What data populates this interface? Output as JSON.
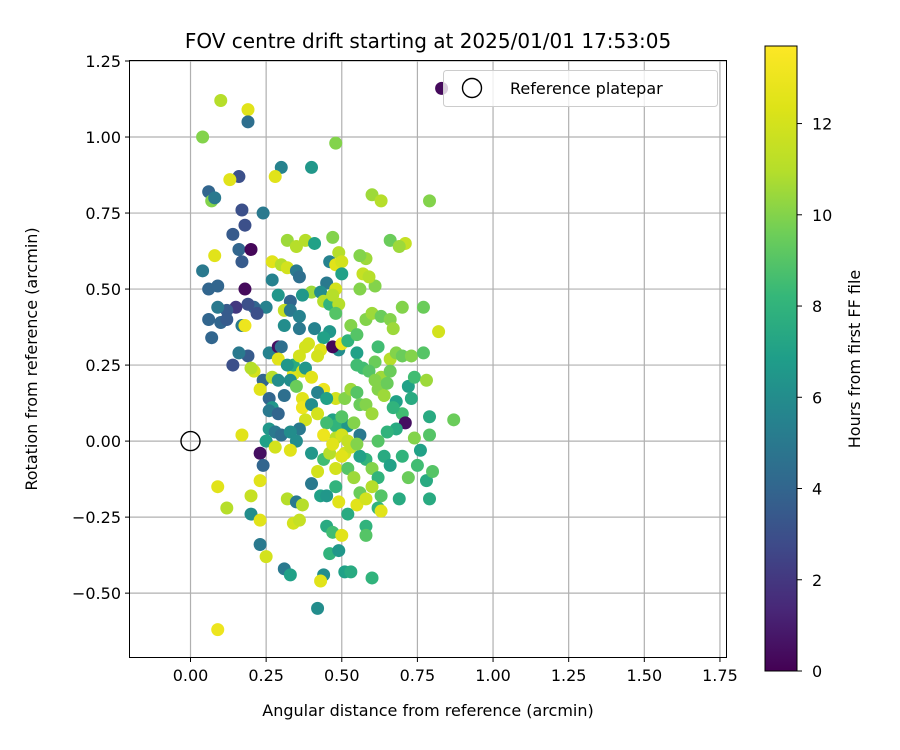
{
  "chart_data": {
    "type": "scatter",
    "title": "FOV centre drift starting at 2025/01/01 17:53:05",
    "xlabel": "Angular distance from reference (arcmin)",
    "ylabel": "Rotation from reference (arcmin)",
    "xlim": [
      -0.2,
      1.77
    ],
    "ylim": [
      -0.71,
      1.25
    ],
    "grid": true,
    "legend_placement": "top-right",
    "xticks": [
      "0.00",
      "0.25",
      "0.50",
      "0.75",
      "1.00",
      "1.25",
      "1.50",
      "1.75"
    ],
    "xtick_values": [
      0,
      0.25,
      0.5,
      0.75,
      1.0,
      1.25,
      1.5,
      1.75
    ],
    "yticks": [
      "1.25",
      "1.00",
      "0.75",
      "0.50",
      "0.25",
      "0.00",
      "−0.25",
      "−0.50"
    ],
    "ytick_values": [
      1.25,
      1.0,
      0.75,
      0.5,
      0.25,
      0.0,
      -0.25,
      -0.5
    ],
    "reference": {
      "label": "Reference platepar",
      "x": 0.0,
      "y": 0.0
    },
    "colorbar": {
      "label": "Hours from first FF file",
      "colormap": "viridis",
      "range": [
        0,
        13.7
      ],
      "ticks": [
        "0",
        "2",
        "4",
        "6",
        "8",
        "10",
        "12"
      ],
      "tick_values": [
        0,
        2,
        4,
        6,
        8,
        10,
        12
      ]
    },
    "points": [
      [
        0.83,
        1.16,
        0.3
      ],
      [
        0.1,
        1.12,
        11.0
      ],
      [
        0.04,
        1.0,
        10.0
      ],
      [
        0.19,
        1.09,
        12.5
      ],
      [
        0.19,
        1.05,
        4.5
      ],
      [
        0.48,
        0.98,
        10.0
      ],
      [
        0.4,
        0.9,
        6.5
      ],
      [
        0.3,
        0.9,
        5.5
      ],
      [
        0.16,
        0.87,
        3.0
      ],
      [
        0.13,
        0.86,
        12.5
      ],
      [
        0.28,
        0.87,
        12.5
      ],
      [
        0.06,
        0.82,
        4.0
      ],
      [
        0.07,
        0.79,
        10.0
      ],
      [
        0.08,
        0.8,
        5.0
      ],
      [
        0.6,
        0.81,
        10.5
      ],
      [
        0.63,
        0.79,
        11.0
      ],
      [
        0.79,
        0.79,
        10.0
      ],
      [
        0.17,
        0.76,
        3.0
      ],
      [
        0.24,
        0.75,
        5.0
      ],
      [
        0.14,
        0.68,
        3.5
      ],
      [
        0.18,
        0.71,
        3.0
      ],
      [
        0.32,
        0.66,
        10.5
      ],
      [
        0.38,
        0.66,
        11.0
      ],
      [
        0.47,
        0.67,
        10.0
      ],
      [
        0.35,
        0.64,
        11.0
      ],
      [
        0.16,
        0.63,
        4.0
      ],
      [
        0.2,
        0.63,
        0.2
      ],
      [
        0.08,
        0.61,
        12.5
      ],
      [
        0.17,
        0.59,
        3.5
      ],
      [
        0.41,
        0.65,
        7.0
      ],
      [
        0.66,
        0.66,
        9.5
      ],
      [
        0.71,
        0.65,
        11.5
      ],
      [
        0.69,
        0.64,
        10.5
      ],
      [
        0.49,
        0.62,
        11.0
      ],
      [
        0.58,
        0.6,
        10.5
      ],
      [
        0.56,
        0.61,
        10.0
      ],
      [
        0.27,
        0.59,
        12.5
      ],
      [
        0.3,
        0.58,
        11.0
      ],
      [
        0.32,
        0.57,
        12.0
      ],
      [
        0.35,
        0.56,
        5.0
      ],
      [
        0.36,
        0.54,
        4.5
      ],
      [
        0.27,
        0.53,
        5.5
      ],
      [
        0.04,
        0.56,
        5.0
      ],
      [
        0.06,
        0.5,
        4.0
      ],
      [
        0.09,
        0.51,
        4.0
      ],
      [
        0.18,
        0.5,
        0.3
      ],
      [
        0.46,
        0.59,
        5.5
      ],
      [
        0.48,
        0.58,
        12.5
      ],
      [
        0.5,
        0.59,
        12.0
      ],
      [
        0.5,
        0.55,
        7.0
      ],
      [
        0.45,
        0.52,
        5.0
      ],
      [
        0.48,
        0.5,
        12.0
      ],
      [
        0.56,
        0.5,
        10.0
      ],
      [
        0.61,
        0.51,
        10.0
      ],
      [
        0.4,
        0.49,
        10.5
      ],
      [
        0.43,
        0.49,
        6.0
      ],
      [
        0.44,
        0.46,
        11.0
      ],
      [
        0.46,
        0.45,
        8.0
      ],
      [
        0.37,
        0.48,
        6.5
      ],
      [
        0.29,
        0.48,
        6.5
      ],
      [
        0.33,
        0.46,
        4.0
      ],
      [
        0.25,
        0.44,
        5.5
      ],
      [
        0.21,
        0.44,
        4.0
      ],
      [
        0.22,
        0.42,
        3.0
      ],
      [
        0.19,
        0.45,
        3.0
      ],
      [
        0.15,
        0.44,
        2.0
      ],
      [
        0.12,
        0.43,
        3.5
      ],
      [
        0.09,
        0.44,
        5.0
      ],
      [
        0.06,
        0.4,
        4.0
      ],
      [
        0.1,
        0.39,
        4.0
      ],
      [
        0.12,
        0.4,
        3.5
      ],
      [
        0.17,
        0.38,
        5.0
      ],
      [
        0.31,
        0.43,
        11.5
      ],
      [
        0.33,
        0.43,
        5.0
      ],
      [
        0.36,
        0.41,
        5.5
      ],
      [
        0.47,
        0.48,
        11.0
      ],
      [
        0.49,
        0.45,
        11.0
      ],
      [
        0.48,
        0.42,
        9.0
      ],
      [
        0.53,
        0.38,
        10.0
      ],
      [
        0.58,
        0.4,
        10.0
      ],
      [
        0.6,
        0.42,
        10.5
      ],
      [
        0.63,
        0.41,
        9.5
      ],
      [
        0.66,
        0.4,
        10.0
      ],
      [
        0.7,
        0.44,
        10.0
      ],
      [
        0.77,
        0.44,
        9.5
      ],
      [
        0.67,
        0.37,
        10.5
      ],
      [
        0.82,
        0.36,
        12.0
      ],
      [
        0.31,
        0.38,
        6.0
      ],
      [
        0.36,
        0.37,
        5.0
      ],
      [
        0.41,
        0.37,
        5.5
      ],
      [
        0.46,
        0.36,
        6.5
      ],
      [
        0.44,
        0.34,
        7.0
      ],
      [
        0.39,
        0.32,
        12.0
      ],
      [
        0.43,
        0.3,
        12.5
      ],
      [
        0.38,
        0.31,
        12.0
      ],
      [
        0.49,
        0.3,
        6.0
      ],
      [
        0.47,
        0.31,
        0.2
      ],
      [
        0.5,
        0.32,
        13.0
      ],
      [
        0.55,
        0.29,
        7.0
      ],
      [
        0.55,
        0.25,
        8.5
      ],
      [
        0.61,
        0.26,
        9.5
      ],
      [
        0.62,
        0.31,
        8.5
      ],
      [
        0.66,
        0.27,
        11.0
      ],
      [
        0.68,
        0.29,
        10.0
      ],
      [
        0.7,
        0.28,
        9.5
      ],
      [
        0.73,
        0.28,
        10.0
      ],
      [
        0.77,
        0.29,
        9.0
      ],
      [
        0.07,
        0.34,
        4.0
      ],
      [
        0.18,
        0.38,
        13.0
      ],
      [
        0.19,
        0.28,
        3.5
      ],
      [
        0.16,
        0.29,
        5.0
      ],
      [
        0.21,
        0.23,
        12.0
      ],
      [
        0.2,
        0.24,
        11.0
      ],
      [
        0.14,
        0.25,
        3.0
      ],
      [
        0.26,
        0.29,
        5.5
      ],
      [
        0.29,
        0.31,
        0.5
      ],
      [
        0.3,
        0.31,
        4.5
      ],
      [
        0.29,
        0.27,
        12.5
      ],
      [
        0.34,
        0.22,
        12.5
      ],
      [
        0.33,
        0.2,
        6.0
      ],
      [
        0.35,
        0.18,
        9.5
      ],
      [
        0.34,
        0.25,
        7.5
      ],
      [
        0.37,
        0.23,
        12.0
      ],
      [
        0.42,
        0.28,
        12.0
      ],
      [
        0.24,
        0.2,
        4.0
      ],
      [
        0.23,
        0.17,
        12.5
      ],
      [
        0.27,
        0.21,
        11.0
      ],
      [
        0.26,
        0.14,
        4.0
      ],
      [
        0.27,
        0.11,
        6.5
      ],
      [
        0.26,
        0.1,
        5.0
      ],
      [
        0.29,
        0.09,
        4.0
      ],
      [
        0.37,
        0.14,
        12.5
      ],
      [
        0.37,
        0.11,
        13.0
      ],
      [
        0.38,
        0.07,
        12.0
      ],
      [
        0.36,
        0.04,
        5.0
      ],
      [
        0.44,
        0.17,
        13.0
      ],
      [
        0.48,
        0.14,
        12.0
      ],
      [
        0.51,
        0.14,
        10.0
      ],
      [
        0.53,
        0.17,
        10.5
      ],
      [
        0.55,
        0.16,
        9.0
      ],
      [
        0.56,
        0.12,
        9.5
      ],
      [
        0.47,
        0.07,
        7.0
      ],
      [
        0.48,
        0.05,
        8.0
      ],
      [
        0.52,
        0.05,
        6.5
      ],
      [
        0.54,
        0.06,
        10.0
      ],
      [
        0.56,
        0.02,
        5.0
      ],
      [
        0.58,
        0.12,
        10.0
      ],
      [
        0.6,
        0.09,
        10.5
      ],
      [
        0.62,
        0.17,
        10.0
      ],
      [
        0.64,
        0.15,
        10.5
      ],
      [
        0.63,
        0.21,
        10.5
      ],
      [
        0.66,
        0.23,
        9.5
      ],
      [
        0.68,
        0.13,
        7.0
      ],
      [
        0.7,
        0.09,
        8.5
      ],
      [
        0.72,
        0.18,
        7.0
      ],
      [
        0.73,
        0.14,
        7.5
      ],
      [
        0.74,
        0.21,
        8.5
      ],
      [
        0.78,
        0.2,
        10.5
      ],
      [
        0.71,
        0.06,
        0.5
      ],
      [
        0.68,
        0.04,
        7.5
      ],
      [
        0.65,
        0.03,
        8.0
      ],
      [
        0.62,
        0.0,
        9.0
      ],
      [
        0.74,
        0.01,
        10.0
      ],
      [
        0.76,
        -0.03,
        7.0
      ],
      [
        0.79,
        0.08,
        7.5
      ],
      [
        0.79,
        0.02,
        9.0
      ],
      [
        0.87,
        0.07,
        9.5
      ],
      [
        0.26,
        0.04,
        6.5
      ],
      [
        0.28,
        0.03,
        5.0
      ],
      [
        0.25,
        0.0,
        7.0
      ],
      [
        0.3,
        0.02,
        4.5
      ],
      [
        0.33,
        0.03,
        6.0
      ],
      [
        0.35,
        0.0,
        6.0
      ],
      [
        0.17,
        0.02,
        12.5
      ],
      [
        0.23,
        -0.04,
        0.5
      ],
      [
        0.24,
        -0.08,
        4.0
      ],
      [
        0.28,
        -0.02,
        12.0
      ],
      [
        0.33,
        -0.03,
        12.5
      ],
      [
        0.4,
        -0.04,
        6.5
      ],
      [
        0.42,
        -0.1,
        12.0
      ],
      [
        0.44,
        -0.06,
        8.5
      ],
      [
        0.46,
        -0.04,
        11.0
      ],
      [
        0.48,
        -0.09,
        12.0
      ],
      [
        0.51,
        -0.04,
        12.0
      ],
      [
        0.53,
        -0.02,
        11.5
      ],
      [
        0.48,
        0.01,
        11.0
      ],
      [
        0.5,
        -0.05,
        12.5
      ],
      [
        0.58,
        -0.06,
        8.0
      ],
      [
        0.6,
        -0.09,
        10.0
      ],
      [
        0.62,
        -0.12,
        8.0
      ],
      [
        0.64,
        -0.05,
        7.5
      ],
      [
        0.66,
        -0.08,
        7.0
      ],
      [
        0.7,
        -0.05,
        8.0
      ],
      [
        0.72,
        -0.12,
        9.5
      ],
      [
        0.75,
        -0.08,
        8.5
      ],
      [
        0.78,
        -0.13,
        7.5
      ],
      [
        0.8,
        -0.1,
        9.0
      ],
      [
        0.79,
        -0.19,
        7.5
      ],
      [
        0.69,
        -0.19,
        7.5
      ],
      [
        0.63,
        -0.18,
        9.0
      ],
      [
        0.09,
        -0.15,
        12.5
      ],
      [
        0.12,
        -0.22,
        11.0
      ],
      [
        0.2,
        -0.18,
        11.5
      ],
      [
        0.23,
        -0.13,
        12.5
      ],
      [
        0.2,
        -0.24,
        6.0
      ],
      [
        0.23,
        -0.26,
        12.5
      ],
      [
        0.32,
        -0.19,
        11.0
      ],
      [
        0.35,
        -0.2,
        5.0
      ],
      [
        0.37,
        -0.21,
        11.0
      ],
      [
        0.34,
        -0.27,
        12.0
      ],
      [
        0.36,
        -0.26,
        11.5
      ],
      [
        0.4,
        -0.14,
        5.0
      ],
      [
        0.43,
        -0.18,
        7.0
      ],
      [
        0.45,
        -0.18,
        6.5
      ],
      [
        0.48,
        -0.15,
        8.0
      ],
      [
        0.49,
        -0.2,
        12.5
      ],
      [
        0.52,
        -0.24,
        7.5
      ],
      [
        0.55,
        -0.21,
        12.5
      ],
      [
        0.56,
        -0.17,
        9.5
      ],
      [
        0.58,
        -0.19,
        12.0
      ],
      [
        0.6,
        -0.15,
        11.0
      ],
      [
        0.62,
        -0.22,
        8.0
      ],
      [
        0.63,
        -0.23,
        12.5
      ],
      [
        0.45,
        -0.28,
        7.5
      ],
      [
        0.47,
        -0.3,
        8.5
      ],
      [
        0.5,
        -0.31,
        12.5
      ],
      [
        0.58,
        -0.28,
        8.0
      ],
      [
        0.58,
        -0.31,
        9.0
      ],
      [
        0.46,
        -0.37,
        8.0
      ],
      [
        0.49,
        -0.36,
        6.5
      ],
      [
        0.51,
        -0.43,
        7.0
      ],
      [
        0.53,
        -0.43,
        7.5
      ],
      [
        0.6,
        -0.45,
        8.0
      ],
      [
        0.44,
        -0.44,
        6.0
      ],
      [
        0.43,
        -0.46,
        12.5
      ],
      [
        0.31,
        -0.42,
        5.0
      ],
      [
        0.33,
        -0.44,
        7.0
      ],
      [
        0.25,
        -0.38,
        12.0
      ],
      [
        0.23,
        -0.34,
        5.0
      ],
      [
        0.42,
        -0.55,
        6.0
      ],
      [
        0.09,
        -0.62,
        13.0
      ],
      [
        0.57,
        0.55,
        11.5
      ],
      [
        0.59,
        0.54,
        11.0
      ],
      [
        0.52,
        0.33,
        8.0
      ],
      [
        0.55,
        0.35,
        9.0
      ],
      [
        0.57,
        0.24,
        8.5
      ],
      [
        0.59,
        0.23,
        9.0
      ],
      [
        0.61,
        0.2,
        10.0
      ],
      [
        0.65,
        0.19,
        9.5
      ],
      [
        0.67,
        0.11,
        8.0
      ],
      [
        0.38,
        0.24,
        6.5
      ],
      [
        0.4,
        0.12,
        6.0
      ],
      [
        0.42,
        0.16,
        5.5
      ],
      [
        0.45,
        0.14,
        7.0
      ],
      [
        0.45,
        0.06,
        8.5
      ],
      [
        0.5,
        0.08,
        9.0
      ],
      [
        0.52,
        -0.09,
        9.0
      ],
      [
        0.54,
        -0.12,
        10.5
      ],
      [
        0.56,
        -0.05,
        7.0
      ],
      [
        0.31,
        0.15,
        4.5
      ],
      [
        0.29,
        0.2,
        6.0
      ],
      [
        0.32,
        0.25,
        6.5
      ],
      [
        0.36,
        0.28,
        12.0
      ],
      [
        0.4,
        0.21,
        12.5
      ],
      [
        0.42,
        0.09,
        12.0
      ],
      [
        0.44,
        0.02,
        13.0
      ],
      [
        0.47,
        -0.01,
        12.5
      ],
      [
        0.5,
        0.02,
        12.0
      ],
      [
        0.52,
        0.0,
        11.5
      ],
      [
        0.55,
        -0.01,
        10.0
      ]
    ]
  }
}
